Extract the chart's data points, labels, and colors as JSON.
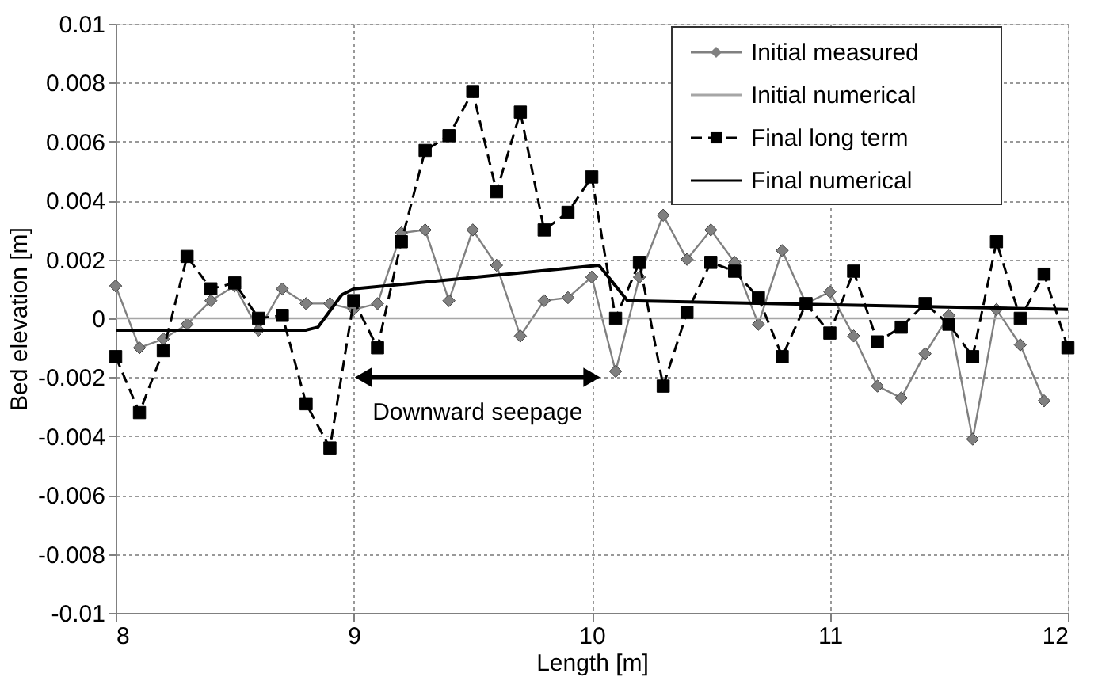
{
  "chart_data": {
    "type": "line",
    "xlabel": "Length [m]",
    "ylabel": "Bed elevation [m]",
    "x": [
      8.0,
      8.1,
      8.2,
      8.3,
      8.4,
      8.5,
      8.6,
      8.7,
      8.8,
      8.9,
      9.0,
      9.1,
      9.2,
      9.3,
      9.4,
      9.5,
      9.6,
      9.7,
      9.8,
      9.9,
      10.0,
      10.1,
      10.2,
      10.3,
      10.4,
      10.5,
      10.6,
      10.7,
      10.8,
      10.9,
      11.0,
      11.1,
      11.2,
      11.3,
      11.4,
      11.5,
      11.6,
      11.7,
      11.8,
      11.9,
      12.0
    ],
    "series": [
      {
        "name": "Initial measured",
        "color": "#808080",
        "marker": "diamond",
        "line_style": "solid",
        "values": [
          0.0011,
          -0.001,
          -0.0007,
          -0.0002,
          0.0006,
          0.0011,
          -0.0004,
          0.001,
          0.0005,
          0.0005,
          0.0003,
          0.0005,
          0.0029,
          0.003,
          0.0006,
          0.003,
          0.0018,
          -0.0006,
          0.0006,
          0.0007,
          0.0014,
          -0.0018,
          0.0014,
          0.0035,
          0.002,
          0.003,
          0.0019,
          -0.0002,
          0.0023,
          0.0005,
          0.0009,
          -0.0006,
          -0.0023,
          -0.0027,
          -0.0012,
          0.0001,
          -0.0041,
          0.0003,
          -0.0009,
          -0.0028,
          null
        ]
      },
      {
        "name": "Initial numerical",
        "color": "#a6a6a6",
        "marker": "none",
        "line_style": "solid",
        "x": [
          8,
          12
        ],
        "values": [
          0,
          0
        ]
      },
      {
        "name": "Final long term",
        "color": "#000000",
        "marker": "square",
        "line_style": "dashed",
        "values": [
          -0.0013,
          -0.0032,
          -0.0011,
          0.0021,
          0.001,
          0.0012,
          0.0,
          0.0001,
          -0.0029,
          -0.0044,
          0.0006,
          -0.001,
          0.0026,
          0.0057,
          0.0062,
          0.0077,
          0.0043,
          0.007,
          0.003,
          0.0036,
          0.0048,
          0.0,
          0.0019,
          -0.0023,
          0.0002,
          0.0019,
          0.0016,
          0.0007,
          -0.0013,
          0.0005,
          -0.0005,
          0.0016,
          -0.0008,
          -0.0003,
          0.0005,
          -0.0002,
          -0.0013,
          0.0026,
          0.0,
          0.0015,
          -0.001
        ]
      },
      {
        "name": "Final numerical",
        "color": "#000000",
        "marker": "none",
        "line_style": "solid",
        "x": [
          8.0,
          8.8,
          8.85,
          8.95,
          9.0,
          10.03,
          10.15,
          12.0
        ],
        "values": [
          -0.0004,
          -0.0004,
          -0.0003,
          0.0008,
          0.001,
          0.0018,
          0.0006,
          0.0003
        ]
      }
    ],
    "xlim": [
      8,
      12
    ],
    "xticks": [
      8,
      9,
      10,
      11,
      12
    ],
    "ylim": [
      -0.01,
      0.01
    ],
    "yticks": [
      -0.01,
      -0.008,
      -0.006,
      -0.004,
      -0.002,
      0,
      0.002,
      0.004,
      0.006,
      0.008,
      0.01
    ],
    "grid": true,
    "legend": "top right",
    "annotations": [
      "Downward seepage"
    ]
  }
}
